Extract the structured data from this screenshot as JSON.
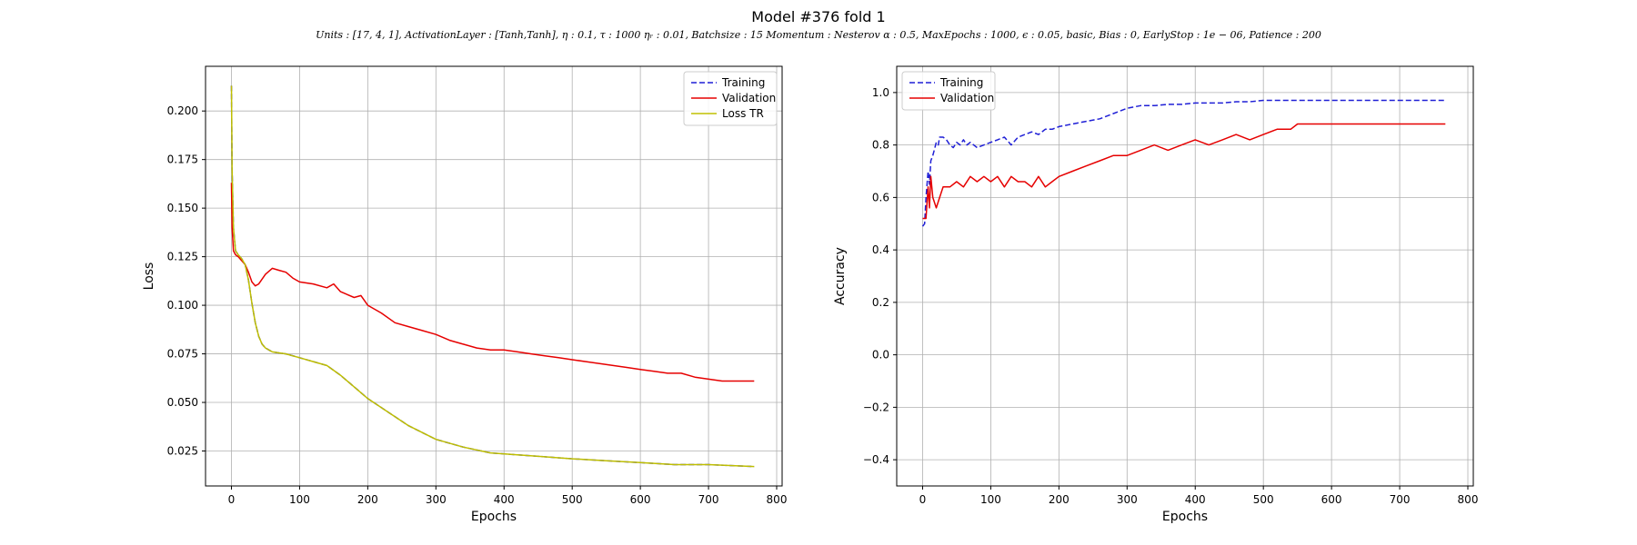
{
  "figure": {
    "title": "Model #376 fold 1",
    "subtitle": "Units : [17, 4, 1], ActivationLayer : [Tanh,Tanh], η : 0.1, τ : 1000 ηᵣ : 0.01, Batchsize : 15 Momentum : Nesterov α : 0.5, MaxEpochs : 1000, ϵ : 0.05, basic, Bias : 0, EarlyStop : 1e − 06, Patience : 200"
  },
  "chart_data": [
    {
      "type": "line",
      "title": "",
      "xlabel": "Epochs",
      "ylabel": "Loss",
      "xlim": [
        -38,
        808
      ],
      "ylim": [
        0.007,
        0.223
      ],
      "xticks": [
        0,
        100,
        200,
        300,
        400,
        500,
        600,
        700,
        800
      ],
      "yticks": [
        0.025,
        0.05,
        0.075,
        0.1,
        0.125,
        0.15,
        0.175,
        0.2
      ],
      "ytick_labels": [
        "0.025",
        "0.050",
        "0.075",
        "0.100",
        "0.125",
        "0.150",
        "0.175",
        "0.200"
      ],
      "grid": true,
      "legend": "top-right",
      "series": [
        {
          "name": "Training",
          "color": "#1f1fd6",
          "dash": "dashed",
          "x": [
            0,
            1,
            3,
            6,
            10,
            15,
            20,
            25,
            30,
            35,
            40,
            45,
            50,
            60,
            80,
            100,
            120,
            140,
            160,
            180,
            200,
            230,
            260,
            300,
            340,
            380,
            420,
            460,
            500,
            550,
            600,
            650,
            700,
            767
          ],
          "y": [
            0.213,
            0.17,
            0.14,
            0.128,
            0.126,
            0.124,
            0.121,
            0.113,
            0.101,
            0.091,
            0.084,
            0.08,
            0.078,
            0.076,
            0.075,
            0.073,
            0.071,
            0.069,
            0.064,
            0.058,
            0.052,
            0.045,
            0.038,
            0.031,
            0.027,
            0.024,
            0.023,
            0.022,
            0.021,
            0.02,
            0.019,
            0.018,
            0.018,
            0.017
          ]
        },
        {
          "name": "Validation",
          "color": "#e60000",
          "dash": "solid",
          "x": [
            0,
            1,
            3,
            6,
            10,
            15,
            20,
            25,
            30,
            35,
            40,
            50,
            60,
            70,
            80,
            90,
            100,
            120,
            140,
            150,
            160,
            180,
            190,
            200,
            220,
            240,
            260,
            280,
            300,
            320,
            340,
            360,
            380,
            400,
            420,
            440,
            460,
            480,
            500,
            520,
            540,
            560,
            580,
            600,
            620,
            640,
            660,
            680,
            700,
            720,
            740,
            767
          ],
          "y": [
            0.163,
            0.14,
            0.128,
            0.126,
            0.125,
            0.123,
            0.121,
            0.117,
            0.112,
            0.11,
            0.111,
            0.116,
            0.119,
            0.118,
            0.117,
            0.114,
            0.112,
            0.111,
            0.109,
            0.111,
            0.107,
            0.104,
            0.105,
            0.1,
            0.096,
            0.091,
            0.089,
            0.087,
            0.085,
            0.082,
            0.08,
            0.078,
            0.077,
            0.077,
            0.076,
            0.075,
            0.074,
            0.073,
            0.072,
            0.071,
            0.07,
            0.069,
            0.068,
            0.067,
            0.066,
            0.065,
            0.065,
            0.063,
            0.062,
            0.061,
            0.061,
            0.061
          ]
        },
        {
          "name": "Loss TR",
          "color": "#bfbf00",
          "dash": "solid",
          "x": [
            0,
            1,
            3,
            6,
            10,
            15,
            20,
            25,
            30,
            35,
            40,
            45,
            50,
            60,
            80,
            100,
            120,
            140,
            160,
            180,
            200,
            230,
            260,
            300,
            340,
            380,
            420,
            460,
            500,
            550,
            600,
            650,
            700,
            767
          ],
          "y": [
            0.213,
            0.17,
            0.14,
            0.128,
            0.126,
            0.124,
            0.121,
            0.113,
            0.101,
            0.091,
            0.084,
            0.08,
            0.078,
            0.076,
            0.075,
            0.073,
            0.071,
            0.069,
            0.064,
            0.058,
            0.052,
            0.045,
            0.038,
            0.031,
            0.027,
            0.024,
            0.023,
            0.022,
            0.021,
            0.02,
            0.019,
            0.018,
            0.018,
            0.017
          ]
        }
      ]
    },
    {
      "type": "line",
      "title": "",
      "xlabel": "Epochs",
      "ylabel": "Accuracy",
      "xlim": [
        -38,
        808
      ],
      "ylim": [
        -0.5,
        1.1
      ],
      "xticks": [
        0,
        100,
        200,
        300,
        400,
        500,
        600,
        700,
        800
      ],
      "yticks": [
        -0.4,
        -0.2,
        0.0,
        0.2,
        0.4,
        0.6,
        0.8,
        1.0
      ],
      "ytick_labels": [
        "−0.4",
        "−0.2",
        "0.0",
        "0.2",
        "0.4",
        "0.6",
        "0.8",
        "1.0"
      ],
      "grid": true,
      "legend": "top-left",
      "series": [
        {
          "name": "Training",
          "color": "#1f1fd6",
          "dash": "dashed",
          "x": [
            0,
            3,
            5,
            8,
            10,
            12,
            15,
            18,
            20,
            23,
            25,
            30,
            35,
            40,
            45,
            50,
            55,
            60,
            65,
            70,
            80,
            90,
            100,
            110,
            120,
            130,
            140,
            150,
            160,
            170,
            180,
            190,
            200,
            220,
            240,
            260,
            280,
            300,
            320,
            340,
            360,
            380,
            400,
            420,
            440,
            460,
            480,
            500,
            550,
            600,
            650,
            700,
            767
          ],
          "y": [
            0.49,
            0.5,
            0.6,
            0.7,
            0.65,
            0.74,
            0.76,
            0.79,
            0.81,
            0.8,
            0.83,
            0.83,
            0.82,
            0.8,
            0.79,
            0.81,
            0.8,
            0.82,
            0.8,
            0.81,
            0.79,
            0.8,
            0.81,
            0.82,
            0.83,
            0.8,
            0.83,
            0.84,
            0.85,
            0.84,
            0.86,
            0.86,
            0.87,
            0.88,
            0.89,
            0.9,
            0.92,
            0.94,
            0.95,
            0.95,
            0.955,
            0.955,
            0.96,
            0.96,
            0.96,
            0.965,
            0.965,
            0.97,
            0.97,
            0.97,
            0.97,
            0.97,
            0.97
          ]
        },
        {
          "name": "Validation",
          "color": "#e60000",
          "dash": "solid",
          "x": [
            0,
            5,
            8,
            10,
            12,
            15,
            20,
            25,
            30,
            40,
            50,
            60,
            70,
            80,
            90,
            100,
            110,
            120,
            130,
            140,
            150,
            160,
            170,
            180,
            190,
            200,
            220,
            240,
            260,
            280,
            300,
            320,
            340,
            360,
            380,
            400,
            420,
            440,
            460,
            480,
            500,
            520,
            540,
            550,
            600,
            650,
            700,
            767
          ],
          "y": [
            0.52,
            0.52,
            0.64,
            0.56,
            0.68,
            0.6,
            0.56,
            0.6,
            0.64,
            0.64,
            0.66,
            0.64,
            0.68,
            0.66,
            0.68,
            0.66,
            0.68,
            0.64,
            0.68,
            0.66,
            0.66,
            0.64,
            0.68,
            0.64,
            0.66,
            0.68,
            0.7,
            0.72,
            0.74,
            0.76,
            0.76,
            0.78,
            0.8,
            0.78,
            0.8,
            0.82,
            0.8,
            0.82,
            0.84,
            0.82,
            0.84,
            0.86,
            0.86,
            0.88,
            0.88,
            0.88,
            0.88,
            0.88
          ]
        }
      ]
    }
  ]
}
